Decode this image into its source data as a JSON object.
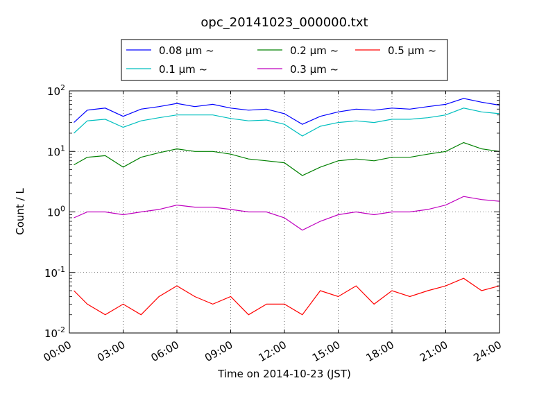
{
  "chart_data": {
    "type": "line",
    "title": "opc_20141023_000000.txt",
    "xlabel": "Time on 2014-10-23 (JST)",
    "ylabel": "Count / L",
    "yscale": "log",
    "ylim": [
      0.01,
      100
    ],
    "xlim": [
      "00:00",
      "24:00"
    ],
    "grid": true,
    "legend_position": "top-center",
    "x_ticks": [
      "00:00",
      "03:00",
      "06:00",
      "09:00",
      "12:00",
      "15:00",
      "18:00",
      "21:00",
      "24:00"
    ],
    "y_ticks": [
      {
        "value": 0.01,
        "base": "10",
        "exp": "-2"
      },
      {
        "value": 0.1,
        "base": "10",
        "exp": "-1"
      },
      {
        "value": 1,
        "base": "10",
        "exp": "0"
      },
      {
        "value": 10,
        "base": "10",
        "exp": "1"
      },
      {
        "value": 100,
        "base": "10",
        "exp": "2"
      }
    ],
    "x_hours": [
      0.25,
      1,
      2,
      3,
      4,
      5,
      6,
      7,
      8,
      9,
      10,
      11,
      12,
      13,
      14,
      15,
      16,
      17,
      18,
      19,
      20,
      21,
      22,
      23,
      24
    ],
    "series": [
      {
        "name": "0.08 μm ~",
        "color": "#0000ff",
        "values": [
          30,
          48,
          52,
          38,
          50,
          55,
          62,
          55,
          60,
          52,
          48,
          50,
          42,
          28,
          38,
          45,
          50,
          48,
          52,
          50,
          55,
          60,
          75,
          65,
          58
        ]
      },
      {
        "name": "0.1 μm ~",
        "color": "#00bfbf",
        "values": [
          20,
          32,
          34,
          25,
          32,
          36,
          40,
          40,
          40,
          35,
          32,
          33,
          28,
          18,
          26,
          30,
          32,
          30,
          34,
          34,
          36,
          40,
          52,
          45,
          42
        ]
      },
      {
        "name": "0.2 μm ~",
        "color": "#008000",
        "values": [
          6,
          8,
          8.5,
          5.5,
          8,
          9.5,
          11,
          10,
          10,
          9,
          7.5,
          7,
          6.5,
          4,
          5.5,
          7,
          7.5,
          7,
          8,
          8,
          9,
          10,
          14,
          11,
          10
        ]
      },
      {
        "name": "0.3 μm ~",
        "color": "#bf00bf",
        "values": [
          0.8,
          1,
          1,
          0.9,
          1,
          1.1,
          1.3,
          1.2,
          1.2,
          1.1,
          1,
          1,
          0.8,
          0.5,
          0.7,
          0.9,
          1,
          0.9,
          1,
          1,
          1.1,
          1.3,
          1.8,
          1.6,
          1.5
        ]
      },
      {
        "name": "0.5 μm ~",
        "color": "#ff0000",
        "values": [
          0.05,
          0.03,
          0.02,
          0.03,
          0.02,
          0.04,
          0.06,
          0.04,
          0.03,
          0.04,
          0.02,
          0.03,
          0.03,
          0.02,
          0.05,
          0.04,
          0.06,
          0.03,
          0.05,
          0.04,
          0.05,
          0.06,
          0.08,
          0.05,
          0.06
        ]
      }
    ]
  }
}
